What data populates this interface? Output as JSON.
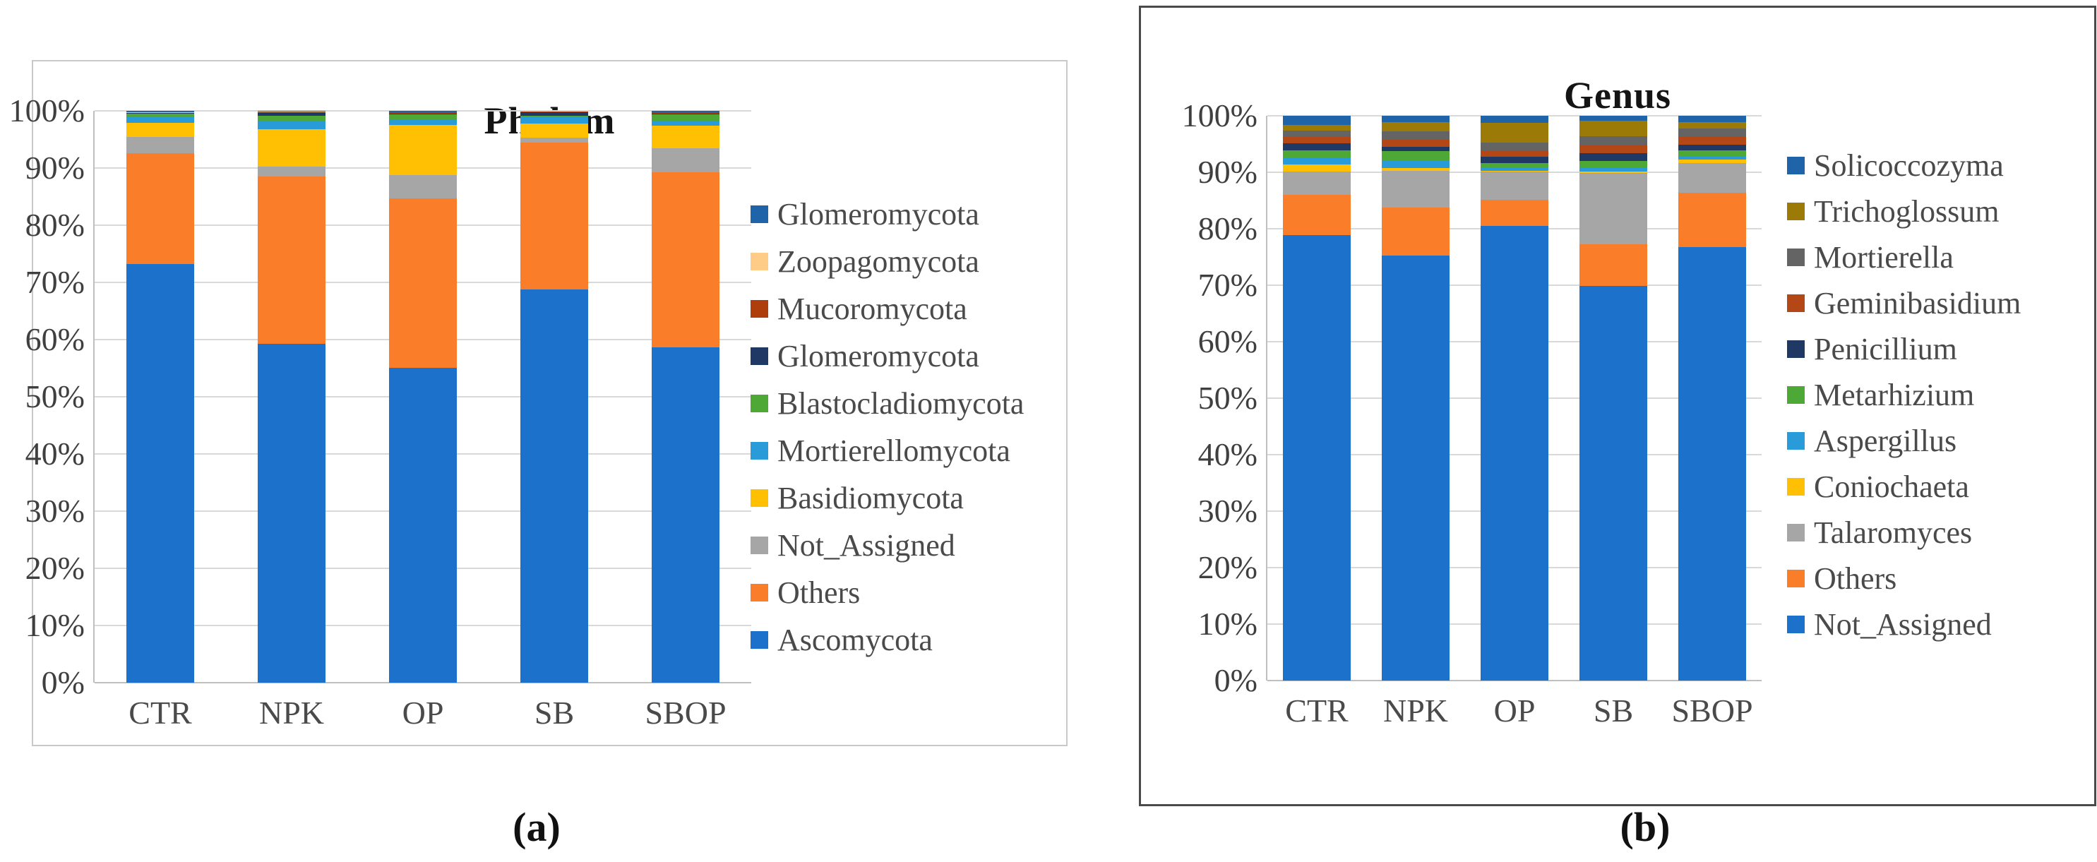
{
  "figure": {
    "panels": [
      {
        "id": "a",
        "caption": "(a)",
        "chart_data": {
          "type": "bar",
          "stacked": true,
          "units": "percent",
          "title": "Phylum",
          "categories": [
            "CTR",
            "NPK",
            "OP",
            "SB",
            "SBOP"
          ],
          "y_ticks": [
            "0%",
            "10%",
            "20%",
            "30%",
            "40%",
            "50%",
            "60%",
            "70%",
            "80%",
            "90%",
            "100%"
          ],
          "ylim": [
            0,
            100
          ],
          "grid": true,
          "legend_position": "right",
          "legend_order": "reverse-of-stack",
          "series": [
            {
              "name": "Ascomycota",
              "color": "#1C72CB",
              "values": [
                73.2,
                59.3,
                55.1,
                68.8,
                58.6
              ]
            },
            {
              "name": "Others",
              "color": "#FA7D2A",
              "values": [
                19.4,
                29.2,
                29.6,
                25.7,
                30.6
              ]
            },
            {
              "name": "Not_Assigned",
              "color": "#A6A6A6",
              "values": [
                2.8,
                1.8,
                4.1,
                0.8,
                4.2
              ]
            },
            {
              "name": "Basidiomycota",
              "color": "#FFC003",
              "values": [
                2.5,
                6.5,
                8.7,
                2.5,
                4.0
              ]
            },
            {
              "name": "Mortierellomycota",
              "color": "#299BD8",
              "values": [
                1.0,
                1.3,
                0.9,
                1.2,
                0.8
              ]
            },
            {
              "name": "Blastocladiomycota",
              "color": "#4DA835",
              "values": [
                0.6,
                1.0,
                1.0,
                0.2,
                1.2
              ]
            },
            {
              "name": "Glomeromycota",
              "color": "#1F3864",
              "values": [
                0.1,
                0.6,
                0.1,
                0.6,
                0.1
              ]
            },
            {
              "name": "Mucoromycota",
              "color": "#AE3E0C",
              "values": [
                0.1,
                0.1,
                0.1,
                0.1,
                0.1
              ]
            },
            {
              "name": "Zoopagomycota",
              "color": "#FFCC87",
              "values": [
                0.1,
                0.1,
                0.1,
                0.05,
                0.1
              ]
            },
            {
              "name": "Glomeromycota",
              "color": "#1F64A8",
              "values": [
                0.2,
                0.1,
                0.3,
                0.05,
                0.3
              ]
            }
          ]
        }
      },
      {
        "id": "b",
        "caption": "(b)",
        "chart_data": {
          "type": "bar",
          "stacked": true,
          "units": "percent",
          "title": "Genus",
          "categories": [
            "CTR",
            "NPK",
            "OP",
            "SB",
            "SBOP"
          ],
          "y_ticks": [
            "0%",
            "10%",
            "20%",
            "30%",
            "40%",
            "50%",
            "60%",
            "70%",
            "80%",
            "90%",
            "100%"
          ],
          "ylim": [
            0,
            100
          ],
          "grid": true,
          "legend_position": "right",
          "legend_order": "reverse-of-stack",
          "series": [
            {
              "name": "Not_Assigned",
              "color": "#1C72CB",
              "values": [
                78.9,
                75.2,
                80.5,
                69.9,
                76.8
              ]
            },
            {
              "name": "Others",
              "color": "#FA7D2A",
              "values": [
                7.1,
                8.6,
                4.6,
                7.3,
                9.6
              ]
            },
            {
              "name": "Talaromyces",
              "color": "#A6A6A6",
              "values": [
                4.1,
                6.5,
                5.0,
                12.7,
                5.2
              ]
            },
            {
              "name": "Coniochaeta",
              "color": "#FFC003",
              "values": [
                1.3,
                0.5,
                0.2,
                0.2,
                0.6
              ]
            },
            {
              "name": "Aspergillus",
              "color": "#299BD8",
              "values": [
                1.2,
                1.2,
                0.5,
                0.8,
                0.6
              ]
            },
            {
              "name": "Metarhizium",
              "color": "#4DA835",
              "values": [
                1.3,
                1.7,
                0.8,
                1.1,
                1.1
              ]
            },
            {
              "name": "Penicillium",
              "color": "#1F3864",
              "values": [
                1.2,
                0.8,
                1.2,
                1.4,
                1.0
              ]
            },
            {
              "name": "Geminibasidium",
              "color": "#B34715",
              "values": [
                1.1,
                1.3,
                1.1,
                1.5,
                1.5
              ]
            },
            {
              "name": "Mortierella",
              "color": "#646464",
              "values": [
                1.2,
                1.4,
                1.4,
                1.5,
                1.4
              ]
            },
            {
              "name": "Trichoglossum",
              "color": "#9C7A07",
              "values": [
                1.0,
                1.7,
                3.4,
                2.7,
                1.1
              ]
            },
            {
              "name": "Solicoccozyma",
              "color": "#1F64A8",
              "values": [
                1.6,
                1.1,
                1.3,
                0.9,
                1.1
              ]
            }
          ]
        }
      }
    ]
  }
}
